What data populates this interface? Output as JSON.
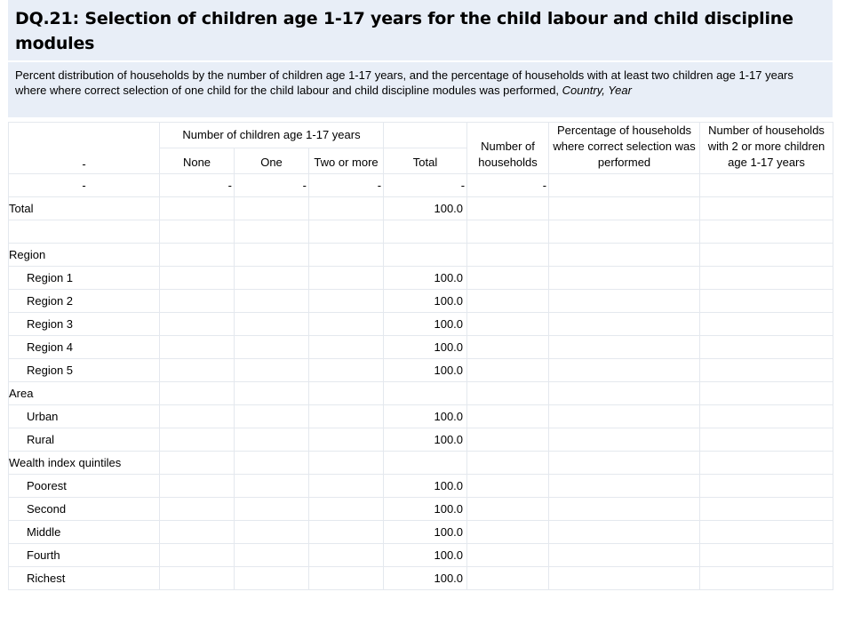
{
  "title": "DQ.21: Selection of children age 1-17 years for the child labour and child discipline modules",
  "subtitle": {
    "text": "Percent distribution of households by the number of children age 1-17 years, and the percentage of households with at least two children age 1-17 years where where correct selection of one child for the child labour and child discipline modules was performed,",
    "country_year": "Country, Year"
  },
  "header": {
    "group_label": "Number of children age 1-17 years",
    "row_label_dash": "-",
    "cols": {
      "none": "None",
      "one": "One",
      "two_or_more": "Two or more",
      "total": "Total",
      "num_households": "Number of households",
      "pct_correct": "Percentage of households where correct selection was performed",
      "num_households_2plus": "Number of households with 2 or more children age 1-17 years"
    },
    "dashes": [
      "-",
      "-",
      "-",
      "-",
      "-",
      "-"
    ]
  },
  "rows": [
    {
      "label": "Total",
      "total": "100.0",
      "indent": false
    },
    {
      "label": "",
      "total": "",
      "indent": false
    },
    {
      "label": "Region",
      "total": "",
      "indent": false
    },
    {
      "label": "Region 1",
      "total": "100.0",
      "indent": true
    },
    {
      "label": "Region 2",
      "total": "100.0",
      "indent": true
    },
    {
      "label": "Region 3",
      "total": "100.0",
      "indent": true
    },
    {
      "label": "Region 4",
      "total": "100.0",
      "indent": true
    },
    {
      "label": "Region 5",
      "total": "100.0",
      "indent": true
    },
    {
      "label": "Area",
      "total": "",
      "indent": false
    },
    {
      "label": "Urban",
      "total": "100.0",
      "indent": true
    },
    {
      "label": "Rural",
      "total": "100.0",
      "indent": true
    },
    {
      "label": "Wealth index quintiles",
      "total": "",
      "indent": false
    },
    {
      "label": "Poorest",
      "total": "100.0",
      "indent": true
    },
    {
      "label": "Second",
      "total": "100.0",
      "indent": true
    },
    {
      "label": "Middle",
      "total": "100.0",
      "indent": true
    },
    {
      "label": "Fourth",
      "total": "100.0",
      "indent": true
    },
    {
      "label": "Richest",
      "total": "100.0",
      "indent": true
    }
  ]
}
